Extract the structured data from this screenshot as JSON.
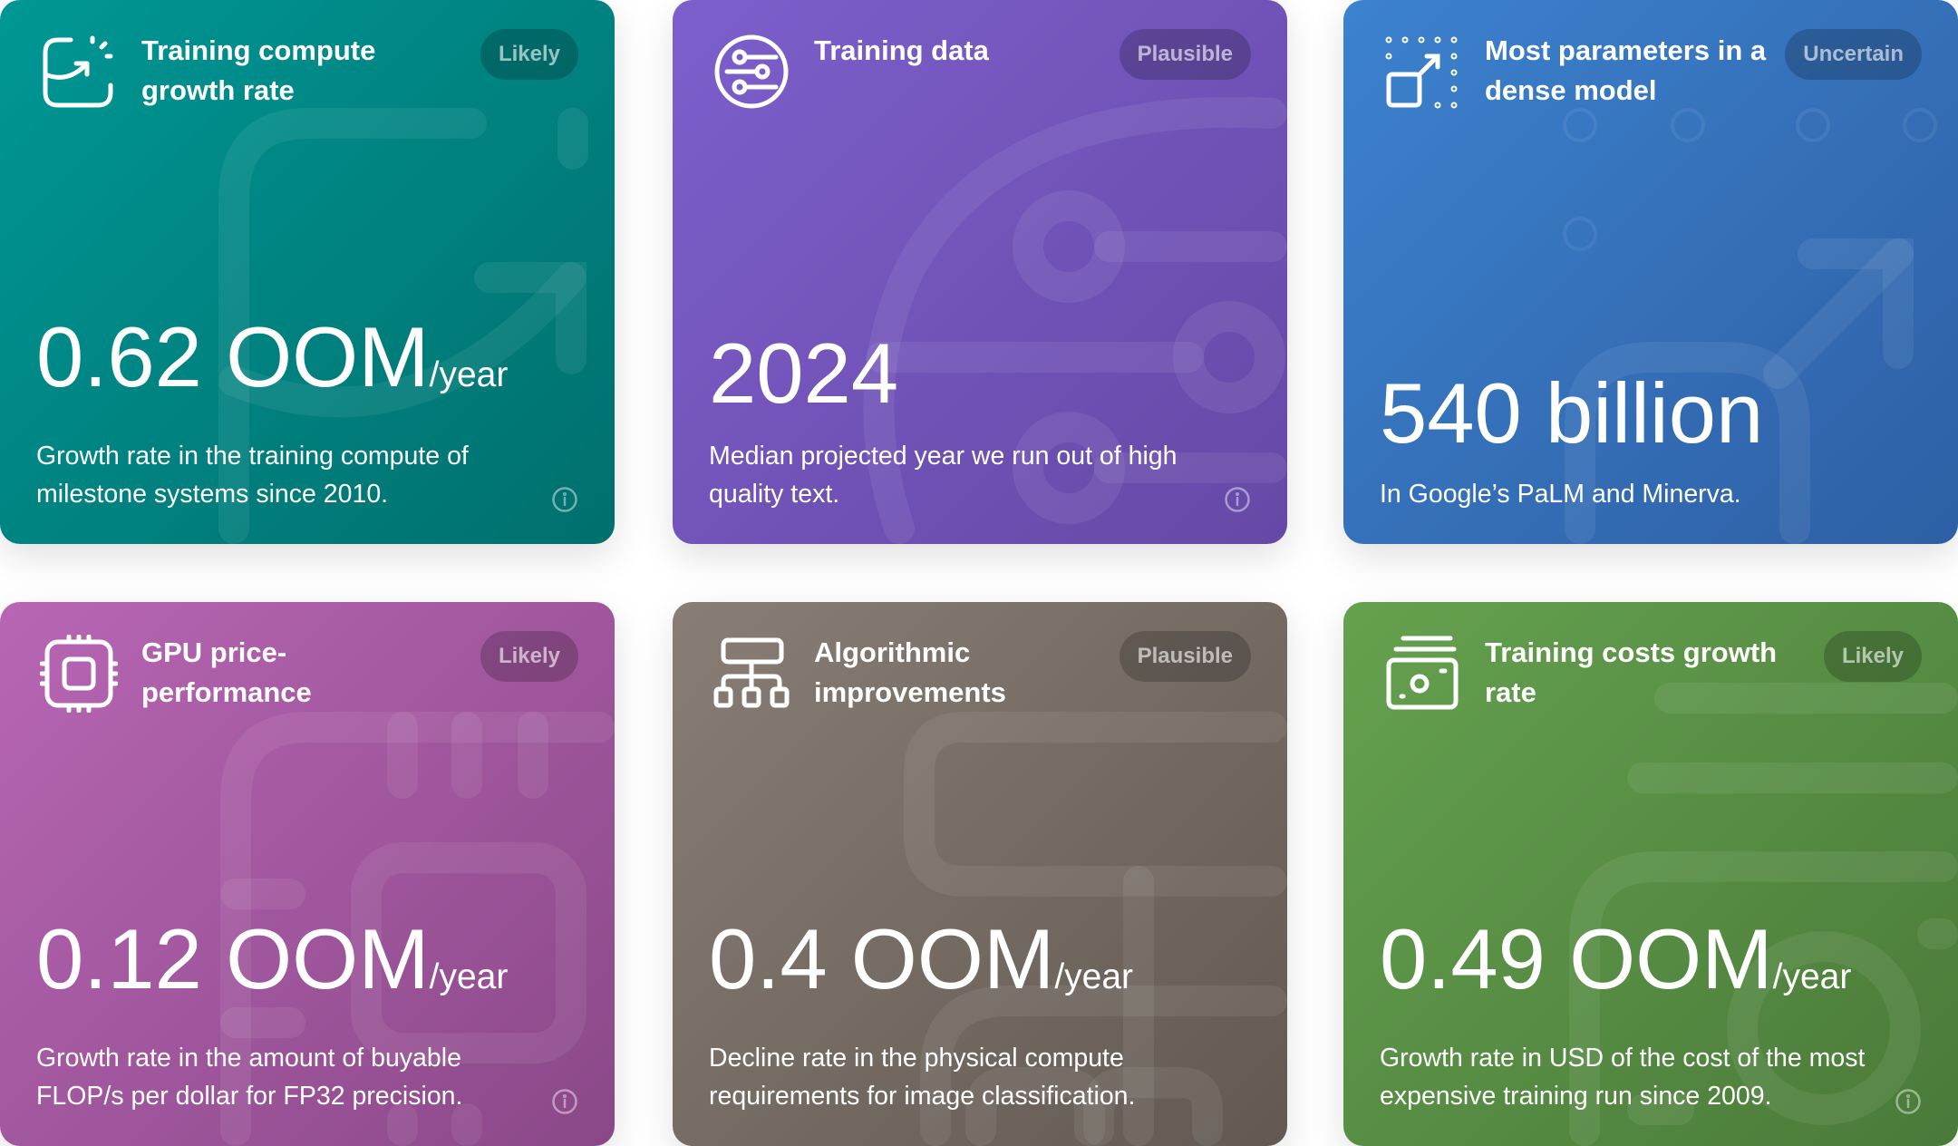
{
  "cards": [
    {
      "title": "Training compute growth rate",
      "badge": "Likely",
      "value": "0.62 OOM",
      "unit": "/year",
      "description": "Growth rate in the training compute of milestone systems since 2010.",
      "icon": "chart-growth-icon",
      "color": "#00918f"
    },
    {
      "title": "Training data",
      "badge": "Plausible",
      "value": "2024",
      "unit": "",
      "description": "Median projected year we run out of high quality text.",
      "icon": "data-sliders-icon",
      "color": "#7459bf"
    },
    {
      "title": "Most parameters in a dense model",
      "badge": "Uncertain",
      "value": "540 billion",
      "unit": "",
      "description": "In Google’s PaLM and Minerva.",
      "icon": "scale-up-icon",
      "color": "#3672bd"
    },
    {
      "title": "GPU price-performance",
      "badge": "Likely",
      "value": "0.12 OOM",
      "unit": "/year",
      "description": "Growth rate in the amount of buyable FLOP/s per dollar for FP32 precision.",
      "icon": "chip-icon",
      "color": "#a35aa0"
    },
    {
      "title": "Algorithmic improvements",
      "badge": "Plausible",
      "value": "0.4 OOM",
      "unit": "/year",
      "description": "Decline rate in the physical compute requirements for image classification.",
      "icon": "hierarchy-icon",
      "color": "#766d65"
    },
    {
      "title": "Training costs growth rate",
      "badge": "Likely",
      "value": "0.49 OOM",
      "unit": "/year",
      "description": "Growth rate in USD of the cost of the most expensive training run since 2009.",
      "icon": "money-icon",
      "color": "#588e45"
    }
  ]
}
